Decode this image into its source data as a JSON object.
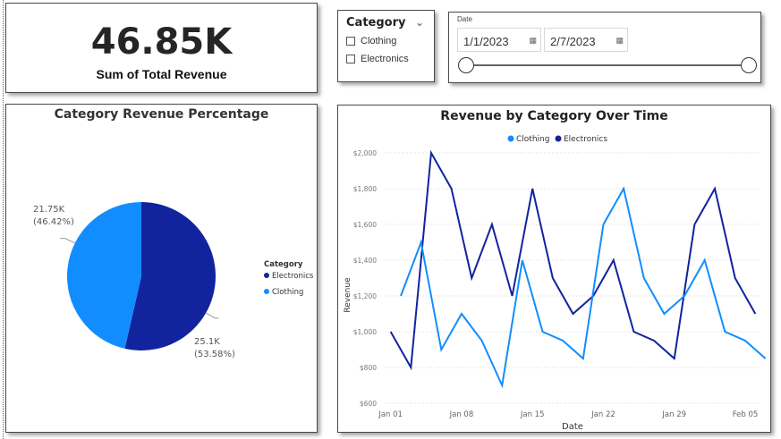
{
  "kpi": {
    "value": "46.85K",
    "label": "Sum of Total Revenue"
  },
  "slicer": {
    "title": "Category",
    "options": [
      "Clothing",
      "Electronics"
    ]
  },
  "date_filter": {
    "label": "Date",
    "start": "1/1/2023",
    "end": "2/7/2023"
  },
  "colors": {
    "clothing": "#118DFF",
    "electronics": "#12239E"
  },
  "chart_data": [
    {
      "type": "pie",
      "title": "Category Revenue Percentage",
      "legend_title": "Category",
      "legend": [
        "Electronics",
        "Clothing"
      ],
      "slices": [
        {
          "name": "Electronics",
          "value": 25.1,
          "value_label": "25.1K",
          "pct_label": "(53.58%)"
        },
        {
          "name": "Clothing",
          "value": 21.75,
          "value_label": "21.75K",
          "pct_label": "(46.42%)"
        }
      ]
    },
    {
      "type": "line",
      "title": "Revenue by Category Over Time",
      "xlabel": "Date",
      "ylabel": "Revenue",
      "ylim": [
        600,
        2000
      ],
      "yticks": [
        600,
        800,
        1000,
        1200,
        1400,
        1600,
        1800,
        2000
      ],
      "ytick_labels": [
        "$600",
        "$800",
        "$1,000",
        "$1,200",
        "$1,400",
        "$1,600",
        "$1,800",
        "$2,000"
      ],
      "x_range_days": [
        -0.5,
        36.5
      ],
      "xticks": [
        {
          "day": 0,
          "label": "Jan 01"
        },
        {
          "day": 7,
          "label": "Jan 08"
        },
        {
          "day": 14,
          "label": "Jan 15"
        },
        {
          "day": 21,
          "label": "Jan 22"
        },
        {
          "day": 28,
          "label": "Jan 29"
        },
        {
          "day": 35,
          "label": "Feb 05"
        }
      ],
      "series": [
        {
          "name": "Clothing",
          "x_days": [
            1,
            3,
            5,
            7,
            9,
            11,
            13,
            15,
            17,
            19,
            21,
            23,
            25,
            27,
            29,
            31,
            33,
            35,
            37
          ],
          "values": [
            1200,
            1500,
            900,
            1100,
            950,
            700,
            1400,
            1000,
            950,
            850,
            1600,
            1800,
            1300,
            1100,
            1200,
            1400,
            1000,
            950,
            850
          ]
        },
        {
          "name": "Electronics",
          "x_days": [
            0,
            2,
            4,
            6,
            8,
            10,
            12,
            14,
            16,
            18,
            20,
            22,
            24,
            26,
            28,
            30,
            32,
            34,
            36
          ],
          "values": [
            1000,
            800,
            2000,
            1800,
            1300,
            1600,
            1200,
            1800,
            1300,
            1100,
            1200,
            1400,
            1000,
            950,
            850,
            1600,
            1800,
            1300,
            1100
          ]
        }
      ]
    }
  ]
}
